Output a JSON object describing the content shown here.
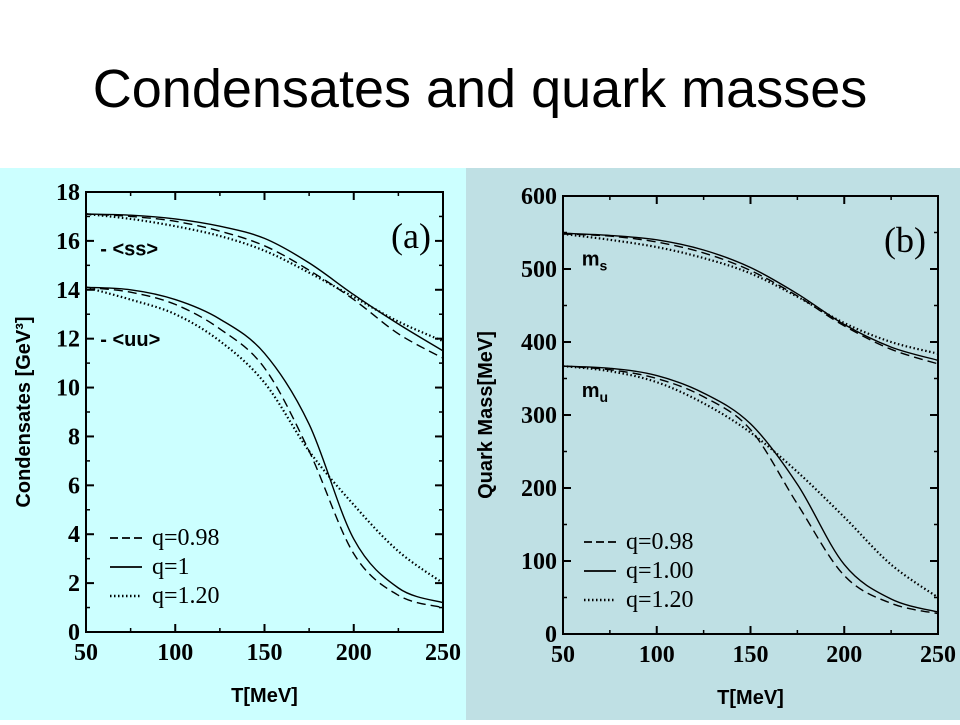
{
  "slide": {
    "title": "Condensates and quark masses"
  },
  "chart_data": [
    {
      "type": "line",
      "panel_label": "(a)",
      "xlabel": "T[MeV]",
      "ylabel": "Condensates [GeV³]",
      "xlim": [
        50,
        250
      ],
      "ylim": [
        0,
        18
      ],
      "x_ticks": [
        50,
        100,
        150,
        200,
        250
      ],
      "y_ticks": [
        0,
        2,
        4,
        6,
        8,
        10,
        12,
        14,
        16,
        18
      ],
      "grid": false,
      "legend_position": "bottom-left",
      "annotations": [
        {
          "text": "- <ss>",
          "x": 58,
          "y": 15.4
        },
        {
          "text": "- <uu>",
          "x": 58,
          "y": 11.7
        }
      ],
      "legend": [
        {
          "label": "q=0.98",
          "style": "dashed"
        },
        {
          "label": "q=1",
          "style": "solid"
        },
        {
          "label": "q=1.20",
          "style": "dotted"
        }
      ],
      "x": [
        50,
        75,
        100,
        125,
        150,
        175,
        200,
        225,
        250
      ],
      "series": [
        {
          "name": "q=0.98",
          "group": "<ss>",
          "style": "dashed",
          "values": [
            17.1,
            17.0,
            16.8,
            16.4,
            15.8,
            14.8,
            13.6,
            12.2,
            11.2
          ]
        },
        {
          "name": "q=1",
          "group": "<ss>",
          "style": "solid",
          "values": [
            17.1,
            17.05,
            16.9,
            16.6,
            16.1,
            15.1,
            13.8,
            12.6,
            11.5
          ]
        },
        {
          "name": "q=1.20",
          "group": "<ss>",
          "style": "dotted",
          "values": [
            17.1,
            16.9,
            16.6,
            16.2,
            15.6,
            14.7,
            13.7,
            12.7,
            11.9
          ]
        },
        {
          "name": "q=0.98",
          "group": "<uu>",
          "style": "dashed",
          "values": [
            14.1,
            13.9,
            13.4,
            12.4,
            10.8,
            7.4,
            3.2,
            1.5,
            1.0
          ]
        },
        {
          "name": "q=1",
          "group": "<uu>",
          "style": "solid",
          "values": [
            14.1,
            14.0,
            13.6,
            12.8,
            11.4,
            8.5,
            3.8,
            1.8,
            1.2
          ]
        },
        {
          "name": "q=1.20",
          "group": "<uu>",
          "style": "dotted",
          "values": [
            14.1,
            13.6,
            13.0,
            11.9,
            10.2,
            7.4,
            5.2,
            3.3,
            2.0
          ]
        }
      ]
    },
    {
      "type": "line",
      "panel_label": "(b)",
      "xlabel": "T[MeV]",
      "ylabel": "Quark Mass[MeV]",
      "xlim": [
        50,
        250
      ],
      "ylim": [
        0,
        600
      ],
      "x_ticks": [
        50,
        100,
        150,
        200,
        250
      ],
      "y_ticks": [
        0,
        100,
        200,
        300,
        400,
        500,
        600
      ],
      "grid": false,
      "legend_position": "bottom-left",
      "annotations": [
        {
          "text": "m",
          "sub": "s",
          "x": 60,
          "y": 505
        },
        {
          "text": "m",
          "sub": "u",
          "x": 60,
          "y": 325
        }
      ],
      "legend": [
        {
          "label": "q=0.98",
          "style": "dashed"
        },
        {
          "label": "q=1.00",
          "style": "solid"
        },
        {
          "label": "q=1.20",
          "style": "dotted"
        }
      ],
      "x": [
        50,
        75,
        100,
        125,
        150,
        175,
        200,
        225,
        250
      ],
      "series": [
        {
          "name": "q=0.98",
          "group": "ms",
          "style": "dashed",
          "values": [
            548,
            545,
            537,
            522,
            498,
            463,
            422,
            390,
            370
          ]
        },
        {
          "name": "q=1.00",
          "group": "ms",
          "style": "solid",
          "values": [
            549,
            546,
            540,
            526,
            502,
            466,
            424,
            393,
            375
          ]
        },
        {
          "name": "q=1.20",
          "group": "ms",
          "style": "dotted",
          "values": [
            548,
            540,
            530,
            515,
            494,
            462,
            426,
            400,
            384
          ]
        },
        {
          "name": "q=0.98",
          "group": "mu",
          "style": "dashed",
          "values": [
            367,
            362,
            350,
            325,
            280,
            178,
            80,
            42,
            28
          ]
        },
        {
          "name": "q=1.00",
          "group": "mu",
          "style": "solid",
          "values": [
            367,
            364,
            354,
            330,
            288,
            205,
            95,
            48,
            30
          ]
        },
        {
          "name": "q=1.20",
          "group": "mu",
          "style": "dotted",
          "values": [
            367,
            360,
            345,
            316,
            276,
            222,
            160,
            95,
            50
          ]
        }
      ]
    }
  ]
}
